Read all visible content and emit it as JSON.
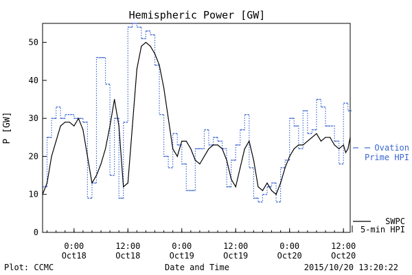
{
  "chart_data": {
    "type": "line",
    "title": "Hemispheric Power [GW]",
    "ylabel": "P [GW]",
    "xlabel": "Date and Time",
    "ylim": [
      0,
      55
    ],
    "yticks": [
      0,
      10,
      20,
      30,
      40,
      50
    ],
    "xlim": [
      "2015-10-17 17:00",
      "2015-10-20 13:30"
    ],
    "xticks": [
      {
        "t": "2015-10-18 00:00",
        "line1": "0:00",
        "line2": "Oct18"
      },
      {
        "t": "2015-10-18 12:00",
        "line1": "12:00",
        "line2": "Oct18"
      },
      {
        "t": "2015-10-19 00:00",
        "line1": "0:00",
        "line2": "Oct19"
      },
      {
        "t": "2015-10-19 12:00",
        "line1": "12:00",
        "line2": "Oct19"
      },
      {
        "t": "2015-10-20 00:00",
        "line1": "0:00",
        "line2": "Oct20"
      },
      {
        "t": "2015-10-20 12:00",
        "line1": "12:00",
        "line2": "Oct20"
      }
    ],
    "grid": false,
    "series": [
      {
        "name": "Ovation Prime HPI",
        "name_line1": "Ovation",
        "name_line2": "Prime HPI",
        "style": "dotted-steps",
        "color": "#3a66d0",
        "points": [
          [
            "2015-10-17 17:00",
            12
          ],
          [
            "2015-10-17 18:00",
            25
          ],
          [
            "2015-10-17 19:00",
            30
          ],
          [
            "2015-10-17 20:00",
            33
          ],
          [
            "2015-10-17 21:00",
            30
          ],
          [
            "2015-10-17 22:00",
            31
          ],
          [
            "2015-10-18 00:00",
            30
          ],
          [
            "2015-10-18 02:00",
            29
          ],
          [
            "2015-10-18 03:00",
            9
          ],
          [
            "2015-10-18 04:00",
            13
          ],
          [
            "2015-10-18 05:00",
            46
          ],
          [
            "2015-10-18 07:00",
            39
          ],
          [
            "2015-10-18 08:00",
            15
          ],
          [
            "2015-10-18 09:00",
            30
          ],
          [
            "2015-10-18 10:00",
            9
          ],
          [
            "2015-10-18 11:00",
            29
          ],
          [
            "2015-10-18 12:00",
            54
          ],
          [
            "2015-10-18 13:00",
            55
          ],
          [
            "2015-10-18 14:00",
            54
          ],
          [
            "2015-10-18 15:00",
            51
          ],
          [
            "2015-10-18 16:00",
            53
          ],
          [
            "2015-10-18 17:00",
            52
          ],
          [
            "2015-10-18 18:00",
            44
          ],
          [
            "2015-10-18 19:00",
            31
          ],
          [
            "2015-10-18 20:00",
            20
          ],
          [
            "2015-10-18 21:00",
            17
          ],
          [
            "2015-10-18 22:00",
            26
          ],
          [
            "2015-10-18 23:00",
            23
          ],
          [
            "2015-10-19 00:00",
            18
          ],
          [
            "2015-10-19 01:00",
            11
          ],
          [
            "2015-10-19 03:00",
            22
          ],
          [
            "2015-10-19 05:00",
            27
          ],
          [
            "2015-10-19 06:00",
            23
          ],
          [
            "2015-10-19 07:00",
            25
          ],
          [
            "2015-10-19 08:00",
            24
          ],
          [
            "2015-10-19 09:00",
            22
          ],
          [
            "2015-10-19 10:00",
            12
          ],
          [
            "2015-10-19 11:00",
            19
          ],
          [
            "2015-10-19 12:00",
            23
          ],
          [
            "2015-10-19 13:00",
            27
          ],
          [
            "2015-10-19 14:00",
            31
          ],
          [
            "2015-10-19 15:00",
            17
          ],
          [
            "2015-10-19 16:00",
            9
          ],
          [
            "2015-10-19 17:00",
            8
          ],
          [
            "2015-10-19 18:00",
            10
          ],
          [
            "2015-10-19 19:00",
            12
          ],
          [
            "2015-10-19 20:00",
            13
          ],
          [
            "2015-10-19 21:00",
            8
          ],
          [
            "2015-10-19 22:00",
            17
          ],
          [
            "2015-10-19 23:00",
            19
          ],
          [
            "2015-10-20 00:00",
            30
          ],
          [
            "2015-10-20 01:00",
            28
          ],
          [
            "2015-10-20 02:00",
            22
          ],
          [
            "2015-10-20 03:00",
            32
          ],
          [
            "2015-10-20 04:00",
            26
          ],
          [
            "2015-10-20 05:00",
            27
          ],
          [
            "2015-10-20 06:00",
            35
          ],
          [
            "2015-10-20 07:00",
            33
          ],
          [
            "2015-10-20 08:00",
            28
          ],
          [
            "2015-10-20 10:00",
            24
          ],
          [
            "2015-10-20 11:00",
            18
          ],
          [
            "2015-10-20 12:00",
            34
          ],
          [
            "2015-10-20 13:00",
            32
          ],
          [
            "2015-10-20 13:30",
            32
          ]
        ]
      },
      {
        "name": "SWPC 5-min HPI",
        "name_line1": "SWPC",
        "name_line2": "5-min HPI",
        "style": "solid",
        "color": "#000000",
        "points": [
          [
            "2015-10-17 17:00",
            10
          ],
          [
            "2015-10-17 18:00",
            13
          ],
          [
            "2015-10-17 19:00",
            20
          ],
          [
            "2015-10-17 20:00",
            24
          ],
          [
            "2015-10-17 21:00",
            28
          ],
          [
            "2015-10-17 22:00",
            29
          ],
          [
            "2015-10-17 23:00",
            29
          ],
          [
            "2015-10-18 00:00",
            28
          ],
          [
            "2015-10-18 01:00",
            30
          ],
          [
            "2015-10-18 02:00",
            27
          ],
          [
            "2015-10-18 03:00",
            20
          ],
          [
            "2015-10-18 04:00",
            13
          ],
          [
            "2015-10-18 05:00",
            15
          ],
          [
            "2015-10-18 06:00",
            18
          ],
          [
            "2015-10-18 07:00",
            22
          ],
          [
            "2015-10-18 08:00",
            28
          ],
          [
            "2015-10-18 09:00",
            35
          ],
          [
            "2015-10-18 10:00",
            28
          ],
          [
            "2015-10-18 11:00",
            12
          ],
          [
            "2015-10-18 12:00",
            13
          ],
          [
            "2015-10-18 13:00",
            28
          ],
          [
            "2015-10-18 14:00",
            43
          ],
          [
            "2015-10-18 15:00",
            49
          ],
          [
            "2015-10-18 16:00",
            50
          ],
          [
            "2015-10-18 17:00",
            49
          ],
          [
            "2015-10-18 18:00",
            47
          ],
          [
            "2015-10-18 19:00",
            44
          ],
          [
            "2015-10-18 20:00",
            38
          ],
          [
            "2015-10-18 21:00",
            30
          ],
          [
            "2015-10-18 22:00",
            22
          ],
          [
            "2015-10-18 23:00",
            20
          ],
          [
            "2015-10-19 00:00",
            24
          ],
          [
            "2015-10-19 01:00",
            24
          ],
          [
            "2015-10-19 02:00",
            22
          ],
          [
            "2015-10-19 03:00",
            19
          ],
          [
            "2015-10-19 04:00",
            18
          ],
          [
            "2015-10-19 05:00",
            20
          ],
          [
            "2015-10-19 06:00",
            22
          ],
          [
            "2015-10-19 07:00",
            23
          ],
          [
            "2015-10-19 08:00",
            23
          ],
          [
            "2015-10-19 09:00",
            22
          ],
          [
            "2015-10-19 10:00",
            19
          ],
          [
            "2015-10-19 11:00",
            14
          ],
          [
            "2015-10-19 12:00",
            12
          ],
          [
            "2015-10-19 13:00",
            17
          ],
          [
            "2015-10-19 14:00",
            22
          ],
          [
            "2015-10-19 15:00",
            24
          ],
          [
            "2015-10-19 16:00",
            19
          ],
          [
            "2015-10-19 17:00",
            12
          ],
          [
            "2015-10-19 18:00",
            11
          ],
          [
            "2015-10-19 19:00",
            13
          ],
          [
            "2015-10-19 20:00",
            11
          ],
          [
            "2015-10-19 21:00",
            10
          ],
          [
            "2015-10-19 22:00",
            13
          ],
          [
            "2015-10-19 23:00",
            17
          ],
          [
            "2015-10-20 00:00",
            20
          ],
          [
            "2015-10-20 01:00",
            22
          ],
          [
            "2015-10-20 02:00",
            23
          ],
          [
            "2015-10-20 03:00",
            23
          ],
          [
            "2015-10-20 04:00",
            24
          ],
          [
            "2015-10-20 05:00",
            25
          ],
          [
            "2015-10-20 06:00",
            26
          ],
          [
            "2015-10-20 07:00",
            24
          ],
          [
            "2015-10-20 08:00",
            25
          ],
          [
            "2015-10-20 09:00",
            25
          ],
          [
            "2015-10-20 10:00",
            23
          ],
          [
            "2015-10-20 11:00",
            22
          ],
          [
            "2015-10-20 12:00",
            23
          ],
          [
            "2015-10-20 12:30",
            21
          ],
          [
            "2015-10-20 13:00",
            22
          ],
          [
            "2015-10-20 13:30",
            25
          ]
        ]
      }
    ]
  },
  "footer": {
    "plot_credit": "Plot: CCMC",
    "timestamp": "2015/10/20 13:20:22"
  }
}
